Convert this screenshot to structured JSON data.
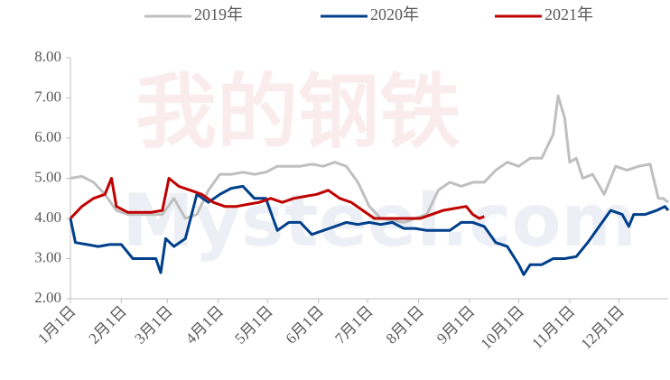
{
  "watermark": {
    "cn": "我的钢铁",
    "en": "Mysteel.com"
  },
  "chart_data": {
    "type": "line",
    "xlim": [
      0,
      364
    ],
    "xticks": [
      {
        "value": 0,
        "label": "1月1日"
      },
      {
        "value": 31,
        "label": "2月1日"
      },
      {
        "value": 59,
        "label": "3月1日"
      },
      {
        "value": 90,
        "label": "4月1日"
      },
      {
        "value": 120,
        "label": "5月1日"
      },
      {
        "value": 151,
        "label": "6月1日"
      },
      {
        "value": 181,
        "label": "7月1日"
      },
      {
        "value": 212,
        "label": "8月1日"
      },
      {
        "value": 243,
        "label": "9月1日"
      },
      {
        "value": 273,
        "label": "10月1日"
      },
      {
        "value": 304,
        "label": "11月1日"
      },
      {
        "value": 334,
        "label": "12月1日"
      }
    ],
    "ylim": [
      2,
      8
    ],
    "yticks": [
      {
        "value": 2,
        "label": "2.00"
      },
      {
        "value": 3,
        "label": "3.00"
      },
      {
        "value": 4,
        "label": "4.00"
      },
      {
        "value": 5,
        "label": "5.00"
      },
      {
        "value": 6,
        "label": "6.00"
      },
      {
        "value": 7,
        "label": "7.00"
      },
      {
        "value": 8,
        "label": "8.00"
      }
    ],
    "grid": false,
    "legend": "top",
    "series": [
      {
        "name": "2019年",
        "color": "#bfbfbf",
        "x": [
          0,
          7,
          14,
          21,
          28,
          35,
          42,
          49,
          56,
          63,
          70,
          77,
          84,
          91,
          98,
          105,
          112,
          119,
          126,
          133,
          140,
          147,
          154,
          161,
          168,
          175,
          182,
          189,
          196,
          203,
          210,
          217,
          224,
          231,
          238,
          245,
          252,
          259,
          266,
          273,
          280,
          287,
          294,
          297,
          301,
          304,
          308,
          312,
          318,
          325,
          332,
          339,
          346,
          353,
          358,
          361,
          364
        ],
        "values": [
          5.0,
          5.05,
          4.9,
          4.6,
          4.2,
          4.1,
          4.1,
          4.1,
          4.1,
          4.5,
          4.0,
          4.1,
          4.7,
          5.1,
          5.1,
          5.15,
          5.1,
          5.15,
          5.3,
          5.3,
          5.3,
          5.35,
          5.3,
          5.4,
          5.3,
          4.9,
          4.3,
          4.0,
          3.95,
          3.9,
          4.0,
          4.1,
          4.7,
          4.9,
          4.8,
          4.9,
          4.9,
          5.2,
          5.4,
          5.3,
          5.5,
          5.5,
          6.1,
          7.05,
          6.5,
          5.4,
          5.5,
          5.0,
          5.1,
          4.6,
          5.3,
          5.2,
          5.3,
          5.35,
          4.5,
          4.5,
          4.4
        ]
      },
      {
        "name": "2020年",
        "color": "#003f8a",
        "x": [
          0,
          3,
          10,
          17,
          24,
          31,
          38,
          45,
          52,
          55,
          58,
          63,
          70,
          77,
          84,
          91,
          98,
          105,
          112,
          119,
          126,
          133,
          140,
          147,
          154,
          161,
          168,
          175,
          182,
          189,
          196,
          203,
          210,
          217,
          224,
          231,
          238,
          245,
          252,
          259,
          266,
          273,
          276,
          280,
          287,
          294,
          301,
          308,
          315,
          322,
          329,
          336,
          340,
          343,
          350,
          357,
          362,
          364
        ],
        "values": [
          4.0,
          3.4,
          3.35,
          3.3,
          3.35,
          3.35,
          3.0,
          3.0,
          3.0,
          2.65,
          3.5,
          3.3,
          3.5,
          4.6,
          4.4,
          4.6,
          4.75,
          4.8,
          4.5,
          4.5,
          3.7,
          3.9,
          3.9,
          3.6,
          3.7,
          3.8,
          3.9,
          3.85,
          3.9,
          3.85,
          3.9,
          3.75,
          3.75,
          3.7,
          3.7,
          3.7,
          3.9,
          3.9,
          3.8,
          3.4,
          3.3,
          2.85,
          2.6,
          2.85,
          2.85,
          3.0,
          3.0,
          3.05,
          3.4,
          3.8,
          4.2,
          4.1,
          3.8,
          4.1,
          4.1,
          4.2,
          4.3,
          4.2
        ]
      },
      {
        "name": "2021年",
        "color": "#c00000",
        "x": [
          0,
          7,
          14,
          21,
          25,
          28,
          35,
          42,
          49,
          56,
          60,
          66,
          73,
          80,
          87,
          94,
          101,
          108,
          115,
          122,
          129,
          136,
          143,
          150,
          157,
          164,
          171,
          178,
          185,
          192,
          199,
          206,
          213,
          220,
          227,
          234,
          241,
          245,
          249,
          252
        ],
        "values": [
          4.0,
          4.3,
          4.5,
          4.6,
          5.0,
          4.3,
          4.15,
          4.15,
          4.15,
          4.2,
          5.0,
          4.8,
          4.7,
          4.6,
          4.4,
          4.3,
          4.3,
          4.35,
          4.4,
          4.5,
          4.4,
          4.5,
          4.55,
          4.6,
          4.7,
          4.5,
          4.4,
          4.2,
          4.0,
          4.0,
          4.0,
          4.0,
          4.0,
          4.1,
          4.2,
          4.25,
          4.3,
          4.1,
          4.0,
          4.05
        ]
      }
    ]
  }
}
